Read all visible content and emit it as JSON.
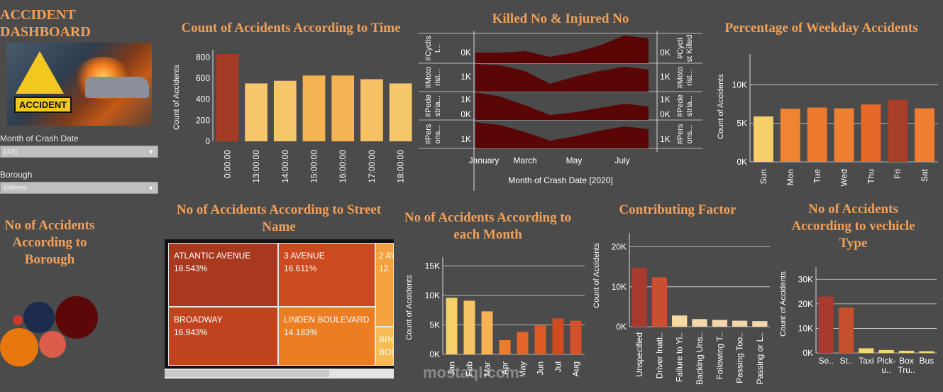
{
  "dashboard": {
    "title_line1": "ACCIDENT",
    "title_line2": "DASHBOARD",
    "logo_text": "ACCIDENT"
  },
  "filters": {
    "month_label": "Month of Crash Date",
    "month_value": "(All)",
    "borough_label": "Borough",
    "borough_value": "Others"
  },
  "time_chart": {
    "title": "Count of Accidents According to Time",
    "ylabel": "Count of Accidents",
    "yticks": [
      "800",
      "600",
      "400",
      "200",
      "0"
    ],
    "categories": [
      "0:00:00",
      "13:00:00",
      "14:00:00",
      "15:00:00",
      "16:00:00",
      "17:00:00",
      "18:00:00"
    ],
    "values": [
      830,
      550,
      575,
      625,
      625,
      590,
      550
    ],
    "colors": [
      "#a33b25",
      "#f6c66a",
      "#f6c66a",
      "#f4b454",
      "#f4b454",
      "#f6c066",
      "#f6c66a"
    ]
  },
  "killed_chart": {
    "title": "Killed No & Injured No",
    "left_labels": [
      "#Moto\nrist...",
      "#Pede\nstria...",
      "#Pers\nons..."
    ],
    "right_labels": [
      "#Cycli\nst Killed",
      "#Moto\nrist...",
      "#Pede\nstria...",
      "#Pers\nons..."
    ],
    "top_left_label": "#Cyclis\nt...",
    "ticks": [
      "0K",
      "1K",
      "1K",
      "0K",
      "1K"
    ],
    "x_ticks": [
      "January",
      "March",
      "May",
      "July"
    ],
    "xlabel": "Month of Crash Date [2020]"
  },
  "weekday_chart": {
    "title": "Percentage of Weekday Accidents",
    "ylabel": "Count of Accidents",
    "yticks": [
      "10K",
      "5K",
      "0K"
    ],
    "categories": [
      "Sun",
      "Mon",
      "Tue",
      "Wed",
      "Thu",
      "Fri",
      "Sat"
    ],
    "values": [
      5900,
      6900,
      7050,
      6950,
      7450,
      8050,
      6950
    ],
    "colors": [
      "#f6cf6a",
      "#f08434",
      "#ee7a2e",
      "#ef7f31",
      "#e56a2a",
      "#a83d28",
      "#f07d30"
    ]
  },
  "borough_chart": {
    "title_line1": "No of Accidents",
    "title_line2": "According to",
    "title_line3": "Borough",
    "bubble_colors": [
      "#5c0808",
      "#1c2a4d",
      "#e8780e",
      "#dc5c4a",
      "#c93a2e"
    ]
  },
  "street_chart": {
    "title_line1": "No of Accidents According to Street",
    "title_line2": "Name",
    "cells": [
      {
        "name": "ATLANTIC AVENUE",
        "pct": "18.543%",
        "color": "#a8391f"
      },
      {
        "name": "3 AVENUE",
        "pct": "16.611%",
        "color": "#cc4a1f"
      },
      {
        "name": "2 AV",
        "pct": "12.",
        "color": "#f4a23e"
      },
      {
        "name": "BROADWAY",
        "pct": "16.943%",
        "color": "#c0441f"
      },
      {
        "name": "LINDEN BOULEVARD",
        "pct": "14.183%",
        "color": "#ec7d23"
      },
      {
        "name": "BRO",
        "pct": "BOU",
        "color": "#f6bb55"
      }
    ]
  },
  "month_chart": {
    "title_line1": "No of Accidents According to",
    "title_line2": "each Month",
    "ylabel": "Count of Accidents",
    "yticks": [
      "15K",
      "10K",
      "5K",
      "0K"
    ],
    "categories": [
      "Jan",
      "Feb",
      "Mar",
      "Apr",
      "May",
      "Jun",
      "Jul",
      "Aug"
    ],
    "values": [
      9600,
      9100,
      7300,
      2400,
      3800,
      4900,
      6100,
      5700
    ],
    "colors": [
      "#f6d068",
      "#f6c565",
      "#f5b257",
      "#ec7d2c",
      "#e56427",
      "#df5b25",
      "#cf4b22",
      "#d4502a"
    ]
  },
  "factor_chart": {
    "title": "Contributing Factor",
    "ylabel": "Count of Accidents",
    "yticks": [
      "20K",
      "10K",
      "0K"
    ],
    "categories": [
      "Unspecified",
      "Driver Inatt..",
      "Failure to Yi..",
      "Backing Uns..",
      "Following T..",
      "Passing Too..",
      "Passing or L.."
    ],
    "values": [
      14800,
      12400,
      2800,
      1900,
      1700,
      1500,
      1400
    ],
    "colors": [
      "#a83a30",
      "#c8502f",
      "#f5d9a0",
      "#f3d8ad",
      "#f3d8ad",
      "#f3d8ad",
      "#f3d8ad"
    ]
  },
  "vehicle_chart": {
    "title_line1": "No of Accidents",
    "title_line2": "According to vechicle",
    "title_line3": "Type",
    "ylabel": "Count of Accidents",
    "yticks": [
      "30K",
      "20K",
      "10K",
      "0K"
    ],
    "categories": [
      "Se..",
      "St..",
      "Taxi",
      "Pick-\nu..",
      "Box\nTru..",
      "Bus"
    ],
    "values": [
      23000,
      18500,
      1900,
      1200,
      900,
      700
    ],
    "colors": [
      "#a83a30",
      "#c8502f",
      "#f6d66e",
      "#f6d66e",
      "#f6d66e",
      "#f6d66e"
    ]
  },
  "watermark": {
    "text": "mostaql.com"
  }
}
